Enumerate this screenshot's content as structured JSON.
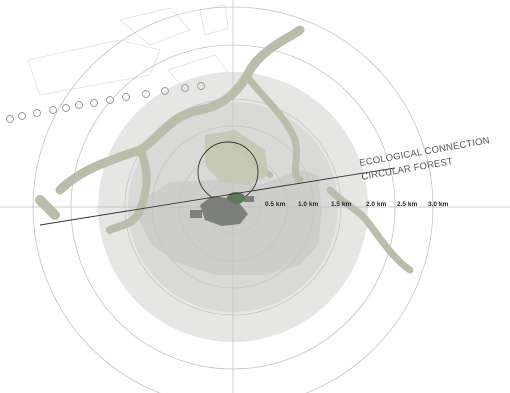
{
  "map": {
    "annotations": {
      "ecological_connection": "ECOLOGICAL CONNECTION",
      "circular_forest": "CIRCULAR FOREST"
    },
    "distance_labels": [
      "0.5 km",
      "1.0 km",
      "1.5 km",
      "2.0 km",
      "2.5 km",
      "3.0 km"
    ],
    "colors": {
      "outer_disc": "#e6e6e4",
      "inner_disc": "#d9d9d7",
      "urban_area": "#cdcdcb",
      "ecological_corridor": "#b9bda9",
      "building_cluster": "#7d7f7b",
      "center_green": "#5f7a5b",
      "rings": "#c4c4c4",
      "axes": "#bdbdbd"
    }
  }
}
